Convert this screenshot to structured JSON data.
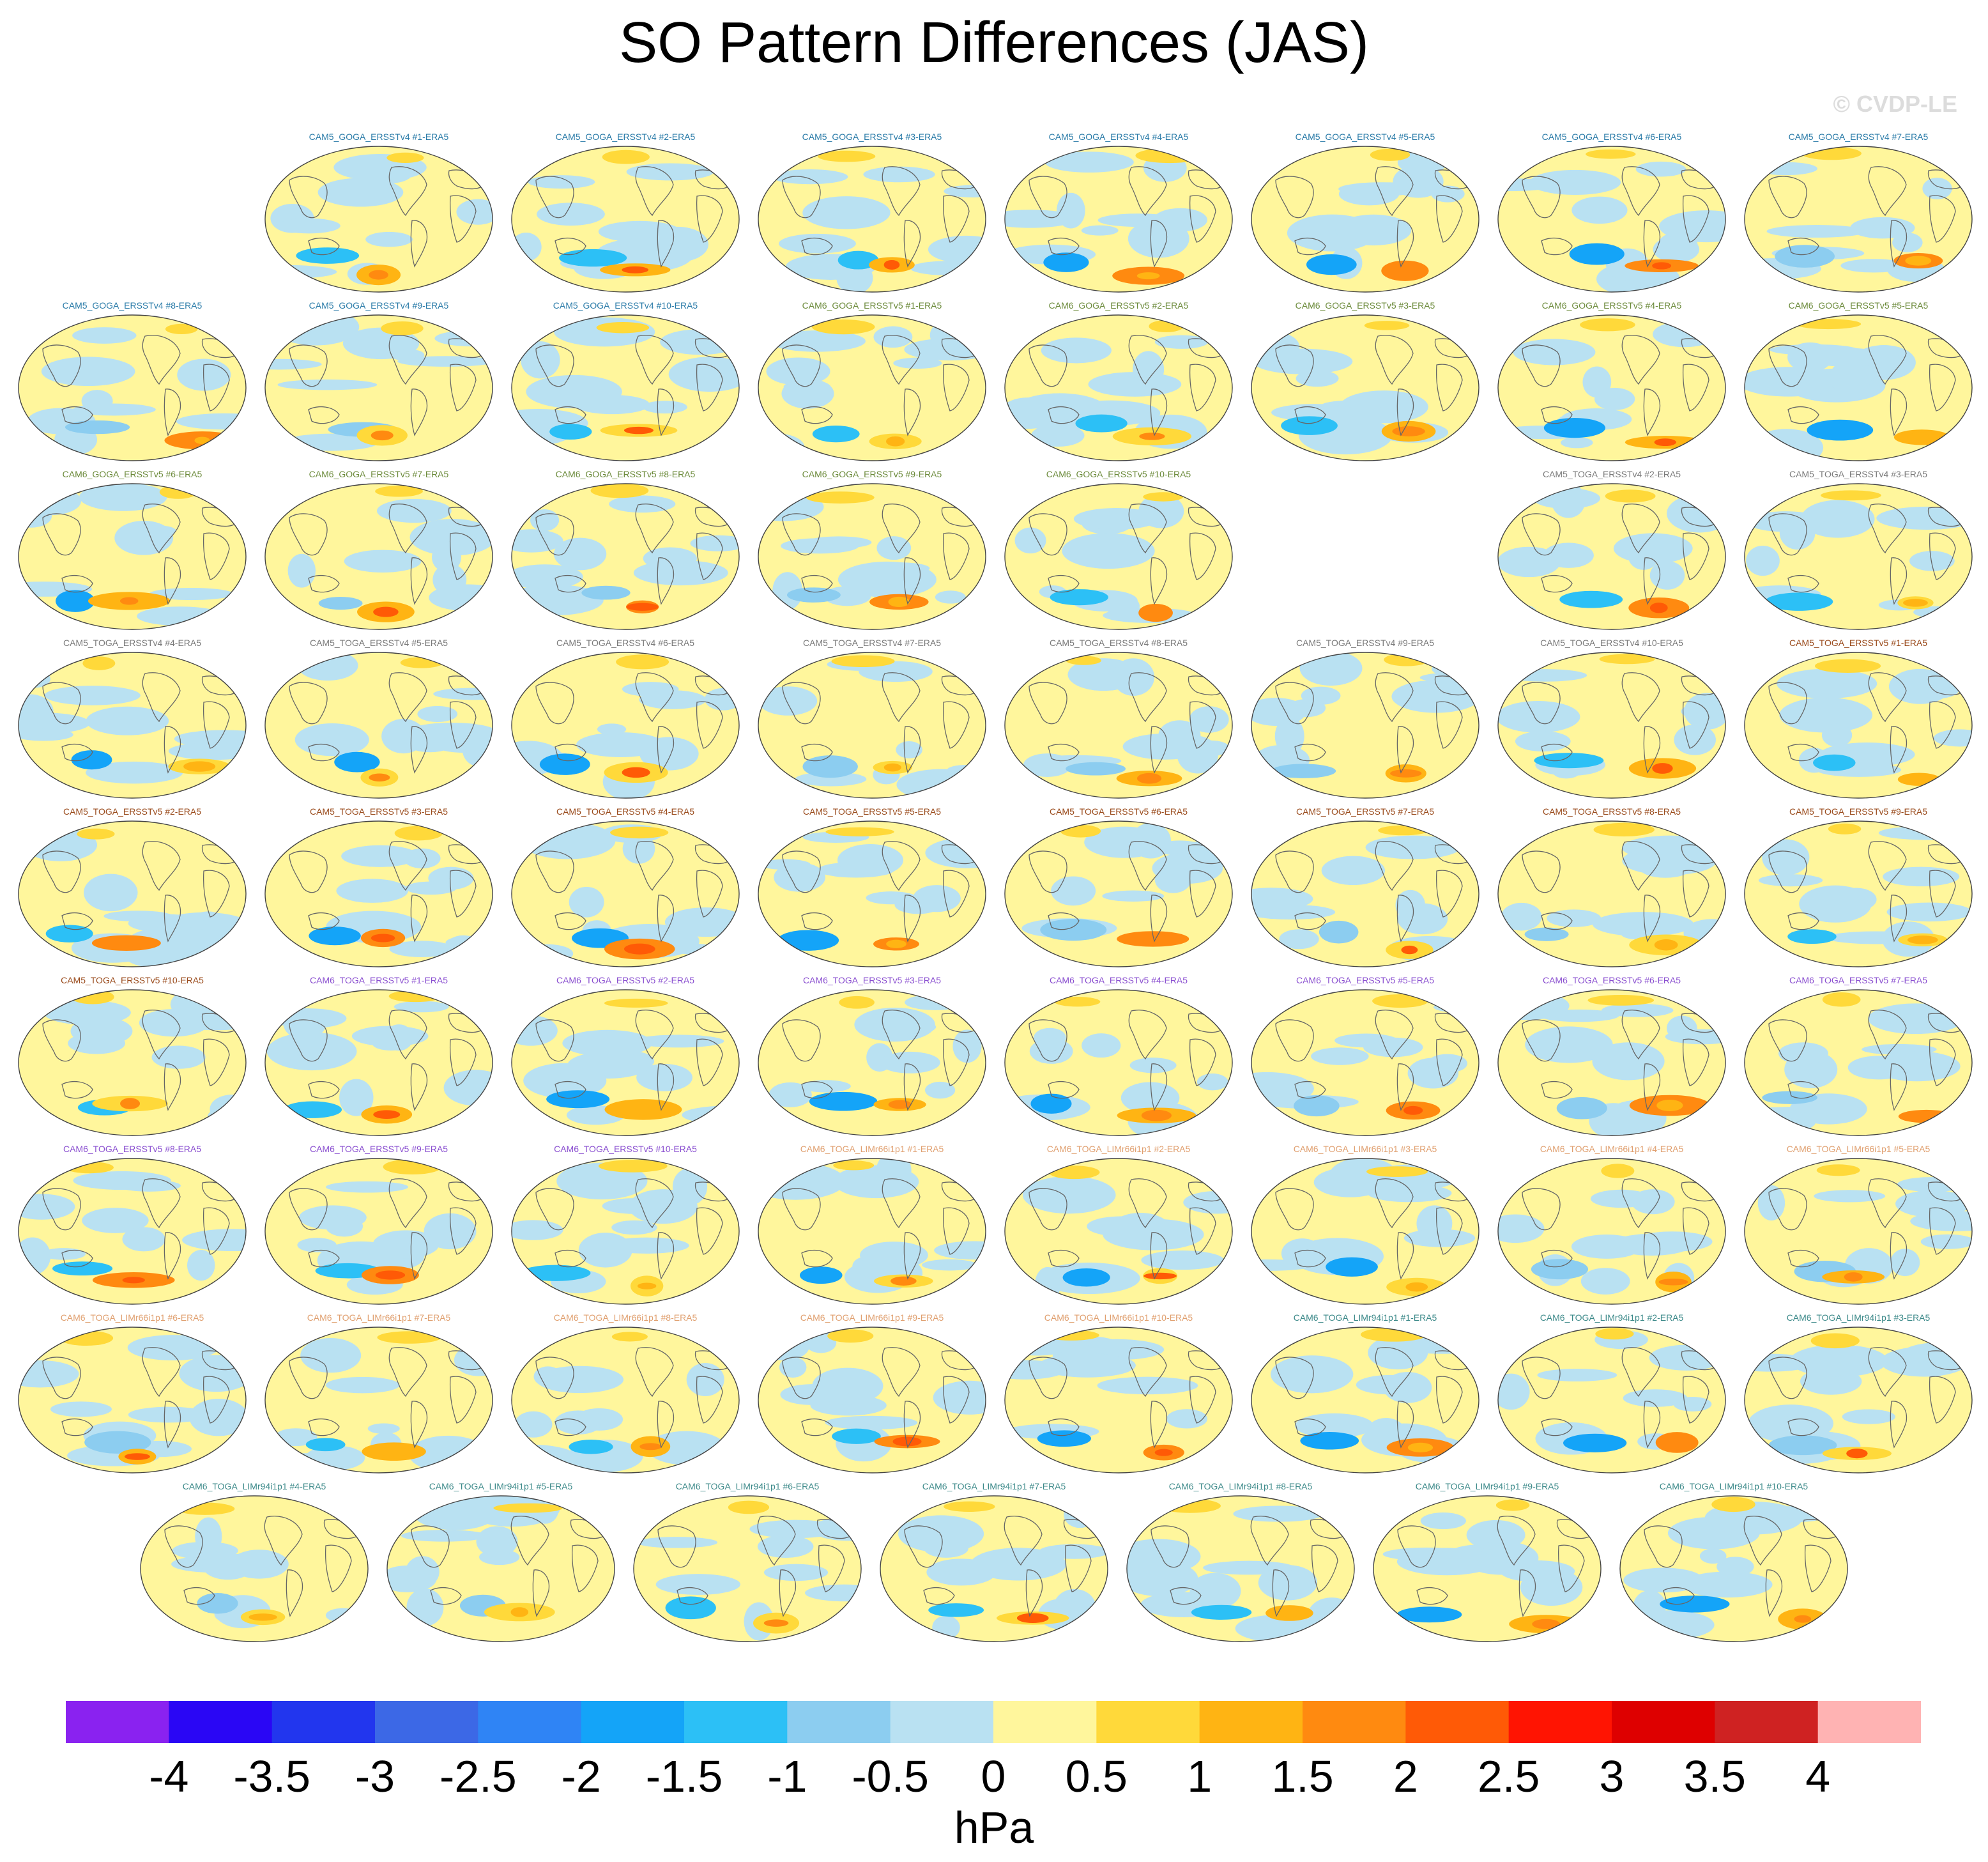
{
  "title": "SO Pattern Differences (JAS)",
  "watermark": "© CVDP-LE",
  "chart_data": {
    "type": "heatmap",
    "map_projection": "global robinson-style ellipse, Pacific-centered",
    "title": "SO Pattern Differences (JAS)",
    "units": "hPa",
    "colorbar": {
      "ticks": [
        "-4",
        "-3.5",
        "-3",
        "-2.5",
        "-2",
        "-1.5",
        "-1",
        "-0.5",
        "0",
        "0.5",
        "1",
        "1.5",
        "2",
        "2.5",
        "3",
        "3.5",
        "4"
      ],
      "range": [
        -4,
        4
      ],
      "colors": [
        "#8a22f0",
        "#2a06f5",
        "#2236ee",
        "#3c68e6",
        "#2f84f5",
        "#14a4f8",
        "#2cc0f6",
        "#8ccdf0",
        "#b9e1f2",
        "#fff69c",
        "#ffd93a",
        "#ffb413",
        "#ff8a10",
        "#ff5a06",
        "#ff1402",
        "#de0000",
        "#cf2222",
        "#ffb3b3"
      ]
    },
    "panels": [
      {
        "label": "CAM5_GOGA_ERSSTv4 #1-ERA5",
        "color": "#2a7ba8"
      },
      {
        "label": "CAM5_GOGA_ERSSTv4 #2-ERA5",
        "color": "#2a7ba8"
      },
      {
        "label": "CAM5_GOGA_ERSSTv4 #3-ERA5",
        "color": "#2a7ba8"
      },
      {
        "label": "CAM5_GOGA_ERSSTv4 #4-ERA5",
        "color": "#2a7ba8"
      },
      {
        "label": "CAM5_GOGA_ERSSTv4 #5-ERA5",
        "color": "#2a7ba8"
      },
      {
        "label": "CAM5_GOGA_ERSSTv4 #6-ERA5",
        "color": "#2a7ba8"
      },
      {
        "label": "CAM5_GOGA_ERSSTv4 #7-ERA5",
        "color": "#2a7ba8"
      },
      {
        "label": "CAM5_GOGA_ERSSTv4 #8-ERA5",
        "color": "#2a7ba8"
      },
      {
        "label": "CAM5_GOGA_ERSSTv4 #9-ERA5",
        "color": "#2a7ba8"
      },
      {
        "label": "CAM5_GOGA_ERSSTv4 #10-ERA5",
        "color": "#2a7ba8"
      },
      {
        "label": "CAM6_GOGA_ERSSTv5 #1-ERA5",
        "color": "#6b8a3a"
      },
      {
        "label": "CAM6_GOGA_ERSSTv5 #2-ERA5",
        "color": "#6b8a3a"
      },
      {
        "label": "CAM6_GOGA_ERSSTv5 #3-ERA5",
        "color": "#6b8a3a"
      },
      {
        "label": "CAM6_GOGA_ERSSTv5 #4-ERA5",
        "color": "#6b8a3a"
      },
      {
        "label": "CAM6_GOGA_ERSSTv5 #5-ERA5",
        "color": "#6b8a3a"
      },
      {
        "label": "CAM6_GOGA_ERSSTv5 #6-ERA5",
        "color": "#6b8a3a"
      },
      {
        "label": "CAM6_GOGA_ERSSTv5 #7-ERA5",
        "color": "#6b8a3a"
      },
      {
        "label": "CAM6_GOGA_ERSSTv5 #8-ERA5",
        "color": "#6b8a3a"
      },
      {
        "label": "CAM6_GOGA_ERSSTv5 #9-ERA5",
        "color": "#6b8a3a"
      },
      {
        "label": "CAM6_GOGA_ERSSTv5 #10-ERA5",
        "color": "#6b8a3a"
      },
      {
        "label": "CAM5_TOGA_ERSSTv4 #2-ERA5",
        "color": "#7a7a7a"
      },
      {
        "label": "CAM5_TOGA_ERSSTv4 #3-ERA5",
        "color": "#7a7a7a"
      },
      {
        "label": "CAM5_TOGA_ERSSTv4 #4-ERA5",
        "color": "#7a7a7a"
      },
      {
        "label": "CAM5_TOGA_ERSSTv4 #5-ERA5",
        "color": "#7a7a7a"
      },
      {
        "label": "CAM5_TOGA_ERSSTv4 #6-ERA5",
        "color": "#7a7a7a"
      },
      {
        "label": "CAM5_TOGA_ERSSTv4 #7-ERA5",
        "color": "#7a7a7a"
      },
      {
        "label": "CAM5_TOGA_ERSSTv4 #8-ERA5",
        "color": "#7a7a7a"
      },
      {
        "label": "CAM5_TOGA_ERSSTv4 #9-ERA5",
        "color": "#7a7a7a"
      },
      {
        "label": "CAM5_TOGA_ERSSTv4 #10-ERA5",
        "color": "#7a7a7a"
      },
      {
        "label": "CAM5_TOGA_ERSSTv5 #1-ERA5",
        "color": "#9a4b1c"
      },
      {
        "label": "CAM5_TOGA_ERSSTv5 #2-ERA5",
        "color": "#9a4b1c"
      },
      {
        "label": "CAM5_TOGA_ERSSTv5 #3-ERA5",
        "color": "#9a4b1c"
      },
      {
        "label": "CAM5_TOGA_ERSSTv5 #4-ERA5",
        "color": "#9a4b1c"
      },
      {
        "label": "CAM5_TOGA_ERSSTv5 #5-ERA5",
        "color": "#9a4b1c"
      },
      {
        "label": "CAM5_TOGA_ERSSTv5 #6-ERA5",
        "color": "#9a4b1c"
      },
      {
        "label": "CAM5_TOGA_ERSSTv5 #7-ERA5",
        "color": "#9a4b1c"
      },
      {
        "label": "CAM5_TOGA_ERSSTv5 #8-ERA5",
        "color": "#9a4b1c"
      },
      {
        "label": "CAM5_TOGA_ERSSTv5 #9-ERA5",
        "color": "#9a4b1c"
      },
      {
        "label": "CAM5_TOGA_ERSSTv5 #10-ERA5",
        "color": "#9a4b1c"
      },
      {
        "label": "CAM6_TOGA_ERSSTv5 #1-ERA5",
        "color": "#8a4fd0"
      },
      {
        "label": "CAM6_TOGA_ERSSTv5 #2-ERA5",
        "color": "#8a4fd0"
      },
      {
        "label": "CAM6_TOGA_ERSSTv5 #3-ERA5",
        "color": "#8a4fd0"
      },
      {
        "label": "CAM6_TOGA_ERSSTv5 #4-ERA5",
        "color": "#8a4fd0"
      },
      {
        "label": "CAM6_TOGA_ERSSTv5 #5-ERA5",
        "color": "#8a4fd0"
      },
      {
        "label": "CAM6_TOGA_ERSSTv5 #6-ERA5",
        "color": "#8a4fd0"
      },
      {
        "label": "CAM6_TOGA_ERSSTv5 #7-ERA5",
        "color": "#8a4fd0"
      },
      {
        "label": "CAM6_TOGA_ERSSTv5 #8-ERA5",
        "color": "#8a4fd0"
      },
      {
        "label": "CAM6_TOGA_ERSSTv5 #9-ERA5",
        "color": "#8a4fd0"
      },
      {
        "label": "CAM6_TOGA_ERSSTv5 #10-ERA5",
        "color": "#8a4fd0"
      },
      {
        "label": "CAM6_TOGA_LIMr66i1p1 #1-ERA5",
        "color": "#e0a070"
      },
      {
        "label": "CAM6_TOGA_LIMr66i1p1 #2-ERA5",
        "color": "#e0a070"
      },
      {
        "label": "CAM6_TOGA_LIMr66i1p1 #3-ERA5",
        "color": "#e0a070"
      },
      {
        "label": "CAM6_TOGA_LIMr66i1p1 #4-ERA5",
        "color": "#e0a070"
      },
      {
        "label": "CAM6_TOGA_LIMr66i1p1 #5-ERA5",
        "color": "#e0a070"
      },
      {
        "label": "CAM6_TOGA_LIMr66i1p1 #6-ERA5",
        "color": "#e0a070"
      },
      {
        "label": "CAM6_TOGA_LIMr66i1p1 #7-ERA5",
        "color": "#e0a070"
      },
      {
        "label": "CAM6_TOGA_LIMr66i1p1 #8-ERA5",
        "color": "#e0a070"
      },
      {
        "label": "CAM6_TOGA_LIMr66i1p1 #9-ERA5",
        "color": "#e0a070"
      },
      {
        "label": "CAM6_TOGA_LIMr66i1p1 #10-ERA5",
        "color": "#e0a070"
      },
      {
        "label": "CAM6_TOGA_LIMr94i1p1 #1-ERA5",
        "color": "#3d8a8a"
      },
      {
        "label": "CAM6_TOGA_LIMr94i1p1 #2-ERA5",
        "color": "#3d8a8a"
      },
      {
        "label": "CAM6_TOGA_LIMr94i1p1 #3-ERA5",
        "color": "#3d8a8a"
      },
      {
        "label": "CAM6_TOGA_LIMr94i1p1 #4-ERA5",
        "color": "#3d8a8a"
      },
      {
        "label": "CAM6_TOGA_LIMr94i1p1 #5-ERA5",
        "color": "#3d8a8a"
      },
      {
        "label": "CAM6_TOGA_LIMr94i1p1 #6-ERA5",
        "color": "#3d8a8a"
      },
      {
        "label": "CAM6_TOGA_LIMr94i1p1 #7-ERA5",
        "color": "#3d8a8a"
      },
      {
        "label": "CAM6_TOGA_LIMr94i1p1 #8-ERA5",
        "color": "#3d8a8a"
      },
      {
        "label": "CAM6_TOGA_LIMr94i1p1 #9-ERA5",
        "color": "#3d8a8a"
      },
      {
        "label": "CAM6_TOGA_LIMr94i1p1 #10-ERA5",
        "color": "#3d8a8a"
      }
    ]
  }
}
